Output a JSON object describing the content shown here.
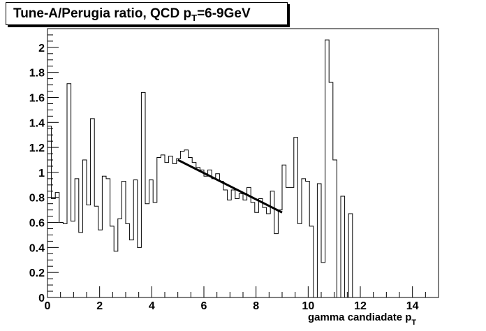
{
  "chart_data": {
    "type": "line",
    "title": {
      "main": "Tune-A/Perugia ratio, QCD p",
      "sub": "T",
      "tail": "=6-9GeV"
    },
    "xlabel": {
      "main": "gamma candiadate p",
      "sub": "T"
    },
    "ylabel": "",
    "xlim": [
      0,
      15
    ],
    "ylim": [
      0,
      2.15
    ],
    "x_ticks": [
      0,
      2,
      4,
      6,
      8,
      10,
      12,
      14
    ],
    "y_ticks": [
      0,
      0.2,
      0.4,
      0.6,
      0.8,
      1,
      1.2,
      1.4,
      1.6,
      1.8,
      2
    ],
    "grid": false,
    "legend": "none",
    "bin_width": 0.15,
    "series": [
      {
        "kind": "histogram-step",
        "x_start": 0,
        "values": [
          1.37,
          0.79,
          0.84,
          0.6,
          0.59,
          1.71,
          0.61,
          0.95,
          0.52,
          1.1,
          0.74,
          1.43,
          0.73,
          0.54,
          0.97,
          0.95,
          0.57,
          0.37,
          0.63,
          0.93,
          0.59,
          0.46,
          0.94,
          0.4,
          1.64,
          0.75,
          0.94,
          0.76,
          1.12,
          1.14,
          1.08,
          1.13,
          1.07,
          1.11,
          1.17,
          1.18,
          1.12,
          1.08,
          1.04,
          1.02,
          0.97,
          1.02,
          0.95,
          0.99,
          0.93,
          0.86,
          0.78,
          0.86,
          0.79,
          0.83,
          0.78,
          0.88,
          0.76,
          0.68,
          0.79,
          0.72,
          0.67,
          0.85,
          0.51,
          0.7,
          1.06,
          0.88,
          0.88,
          1.28,
          0.59,
          0.95,
          0.93,
          0.57,
          0.0,
          0.91,
          0.28,
          2.06,
          1.72,
          1.1,
          0.0,
          0.81,
          0.0,
          0.67
        ]
      },
      {
        "kind": "fit-line",
        "x": [
          5.0,
          9.0
        ],
        "y": [
          1.1,
          0.68
        ]
      }
    ]
  }
}
